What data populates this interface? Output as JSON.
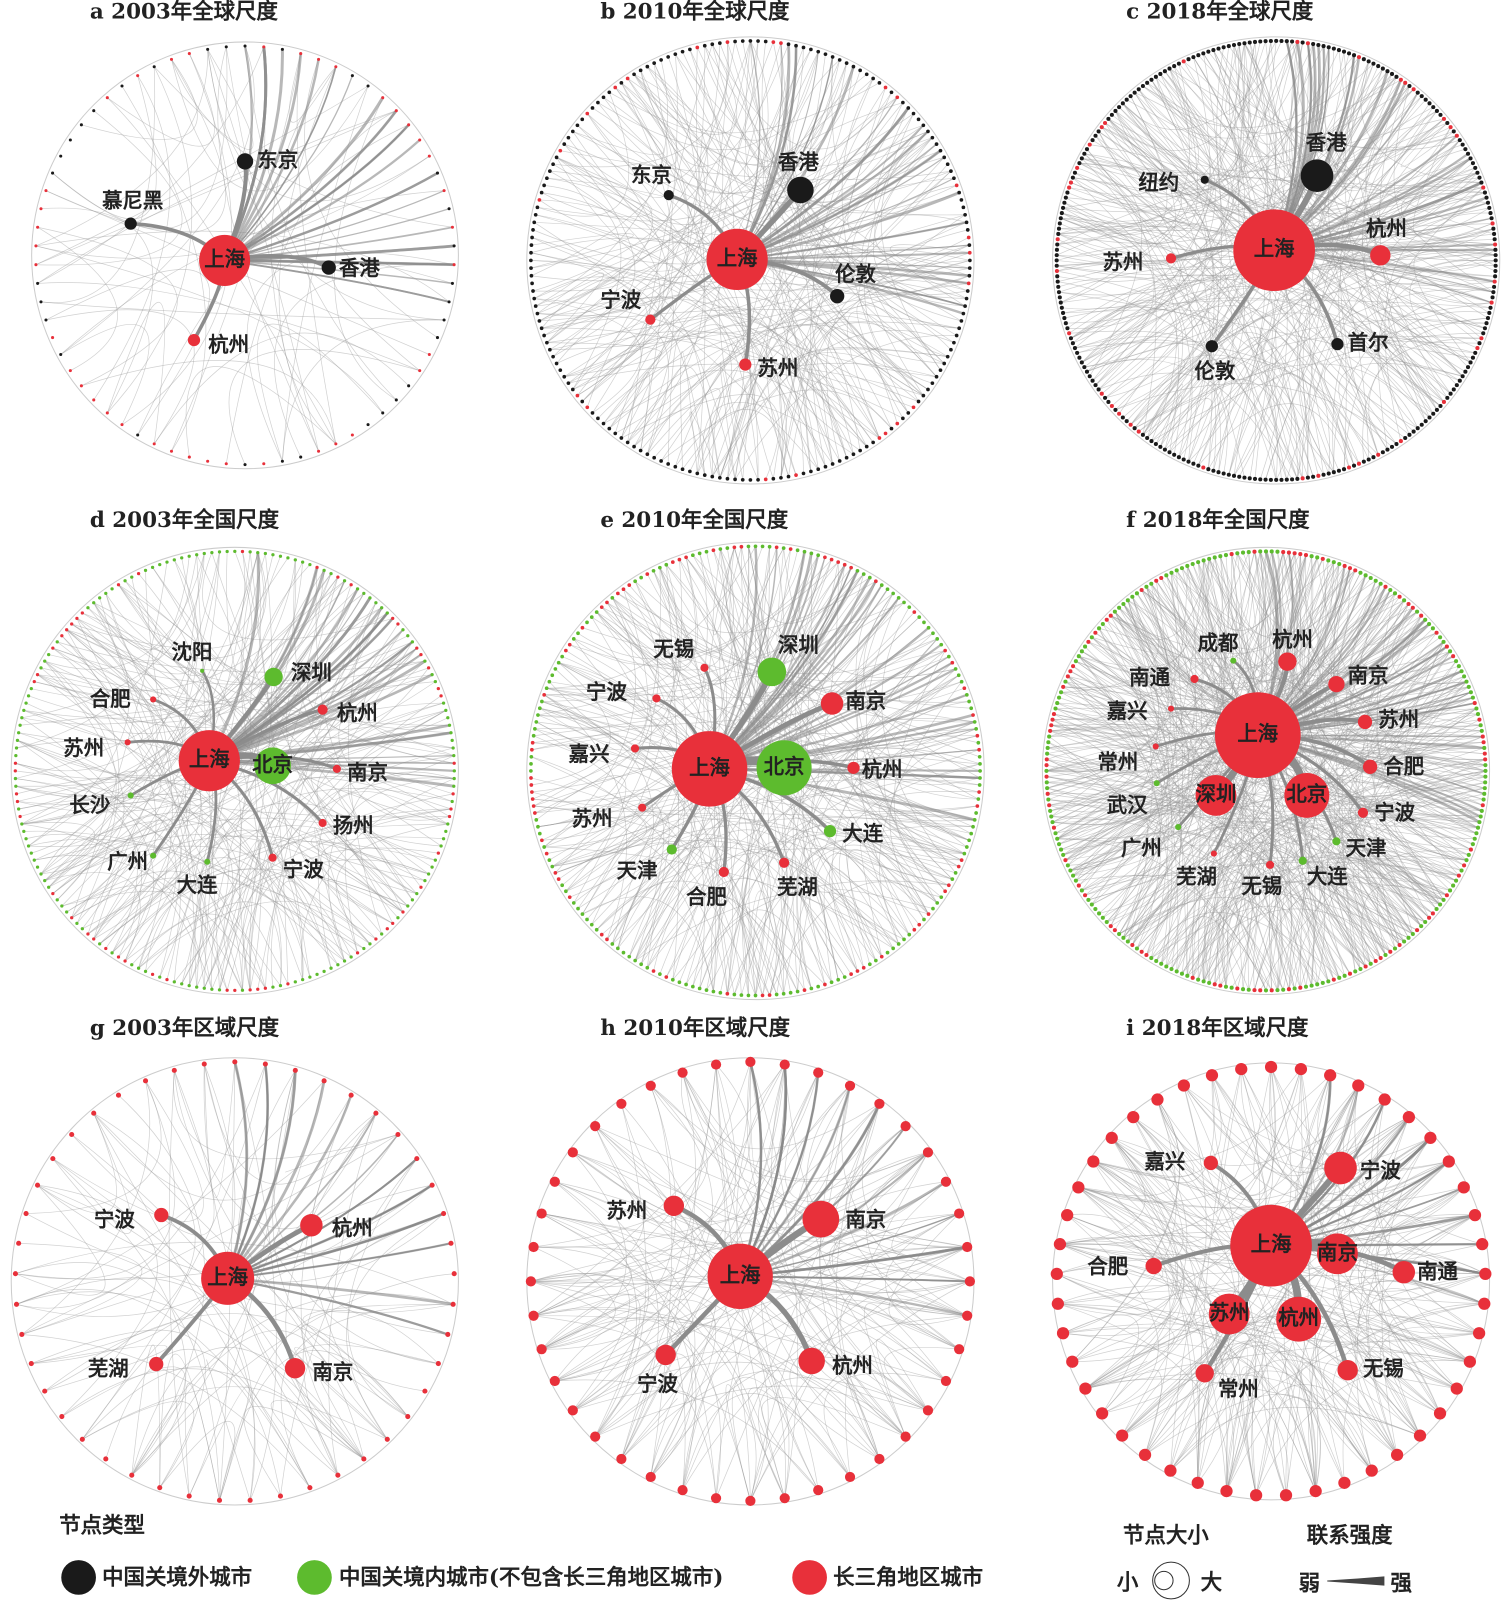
{
  "panels": [
    {
      "title": "a 2003年全球尺度",
      "nodes": [
        "东京",
        "慕尼黑",
        "上海",
        "香港",
        "杭州"
      ]
    },
    {
      "title": "b 2010年全球尺度",
      "nodes": [
        "东京",
        "香港",
        "上海",
        "伦敦",
        "宁波",
        "苏州"
      ]
    },
    {
      "title": "c 2018年全球尺度",
      "nodes": [
        "香港",
        "纽约",
        "苏州",
        "上海",
        "杭州",
        "伦敦",
        "首尔"
      ]
    },
    {
      "title": "d 2003年全国尺度",
      "nodes": [
        "沈阳",
        "深圳",
        "合肥",
        "杭州",
        "苏州",
        "上海",
        "北京",
        "南京",
        "长沙",
        "扬州",
        "广州",
        "大连",
        "宁波"
      ]
    },
    {
      "title": "e 2010年全国尺度",
      "nodes": [
        "无锡",
        "深圳",
        "宁波",
        "南京",
        "嘉兴",
        "上海",
        "北京",
        "杭州",
        "苏州",
        "大连",
        "天津",
        "合肥",
        "芜湖"
      ]
    },
    {
      "title": "f 2018年全国尺度",
      "nodes": [
        "成都",
        "杭州",
        "南通",
        "南京",
        "嘉兴",
        "上海",
        "苏州",
        "常州",
        "合肥",
        "深圳",
        "北京",
        "武汉",
        "宁波",
        "广州",
        "天津",
        "芜湖",
        "无锡",
        "大连"
      ]
    },
    {
      "title": "g 2003年区域尺度",
      "nodes": [
        "宁波",
        "杭州",
        "上海",
        "芜湖",
        "南京"
      ]
    },
    {
      "title": "h 2010年区域尺度",
      "nodes": [
        "苏州",
        "南京",
        "上海",
        "杭州",
        "宁波"
      ]
    },
    {
      "title": "i 2018年区域尺度",
      "nodes": [
        "嘉兴",
        "宁波",
        "上海",
        "南京",
        "合肥",
        "南通",
        "苏州",
        "杭州",
        "无锡",
        "常州"
      ]
    }
  ],
  "legend": {
    "title": "节点类型",
    "items": [
      "中国关境外城市",
      "中国关境内城市(不包含长三角地区城市)",
      "长三角地区城市"
    ]
  },
  "size_legend": {
    "title": "节点大小",
    "small": "小",
    "large": "大"
  },
  "strength_legend": {
    "title": "联系强度",
    "weak": "弱",
    "strong": "强"
  }
}
